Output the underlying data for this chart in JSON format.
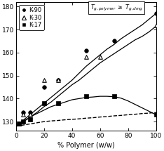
{
  "xlabel": "% Polymer (w/w)",
  "xlim": [
    0,
    100
  ],
  "ylim": [
    126,
    182
  ],
  "yticks": [
    130,
    140,
    150,
    160,
    170,
    180
  ],
  "xticks": [
    0,
    20,
    40,
    60,
    80,
    100
  ],
  "K90_x": [
    2,
    5,
    10,
    20,
    30,
    50,
    70,
    100
  ],
  "K90_y": [
    129,
    134,
    134,
    145,
    148,
    161,
    165,
    177
  ],
  "K30_x": [
    2,
    5,
    10,
    20,
    30,
    50,
    60,
    100
  ],
  "K30_y": [
    129,
    133,
    133,
    148,
    148,
    158,
    158,
    172
  ],
  "K17_x": [
    2,
    5,
    10,
    20,
    30,
    50,
    70,
    100
  ],
  "K17_y": [
    129,
    130,
    131,
    138,
    138,
    141,
    141,
    133
  ],
  "curve_x": [
    0,
    2,
    5,
    8,
    10,
    15,
    20,
    25,
    30,
    35,
    40,
    45,
    50,
    55,
    60,
    65,
    70,
    75,
    80,
    85,
    90,
    95,
    100
  ],
  "K90_curve_y": [
    128,
    129,
    130.5,
    132,
    133,
    135.5,
    138,
    140.5,
    143,
    145.5,
    148,
    151,
    154,
    156.5,
    159,
    161.5,
    163.5,
    166,
    168,
    170,
    172,
    174.5,
    177
  ],
  "K30_curve_y": [
    128,
    128.8,
    130,
    131.2,
    132,
    134,
    136.5,
    138.5,
    141,
    143.5,
    146,
    148,
    150.5,
    153,
    155.5,
    157.5,
    159.5,
    161.5,
    163.5,
    165.5,
    167,
    169,
    171.5
  ],
  "K17_curve_y": [
    128,
    128.8,
    130,
    131,
    132,
    133.5,
    135,
    136.5,
    137.5,
    138.5,
    139.5,
    140,
    140.5,
    140.7,
    141,
    141,
    140.8,
    140.2,
    139,
    137.5,
    136,
    134.5,
    133
  ],
  "dashed_x": [
    0,
    5,
    10,
    15,
    20,
    25,
    30,
    35,
    40,
    45,
    50,
    55,
    60,
    65,
    70,
    75,
    80,
    85,
    90,
    95,
    100
  ],
  "dashed_y": [
    128,
    128.5,
    129,
    129.5,
    130,
    130.3,
    130.5,
    130.8,
    131,
    131.2,
    131.5,
    131.7,
    132,
    132.2,
    132.5,
    132.7,
    133,
    133.2,
    133.5,
    133.7,
    134
  ],
  "bg_color": "#ffffff"
}
